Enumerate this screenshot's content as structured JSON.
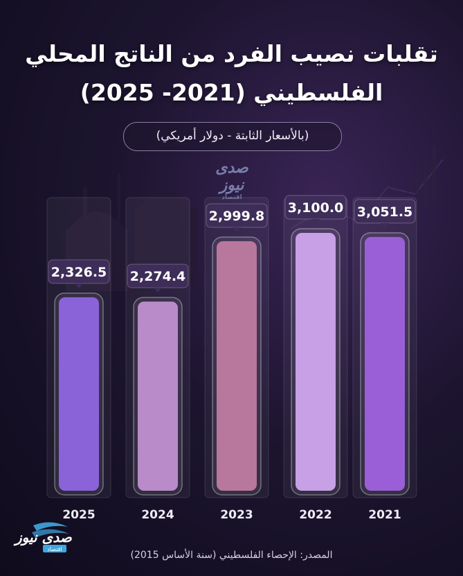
{
  "title_line1": "تقلبات نصيب الفرد من الناتج المحلي",
  "title_line2": "الفلسطيني (2021- 2025)",
  "subtitle": "(بالأسعار الثابتة - دولار أمريكي)",
  "source": "المصدر: الإحصاء الفلسطيني (سنة الأساس 2015)",
  "logo": {
    "name": "صدى نيوز",
    "tag": "اقتصاد"
  },
  "colors": {
    "bar_2025": "#8a63d8",
    "bar_2024": "#b98bc9",
    "bar_2023": "#b8779c",
    "bar_2022": "#c7a0e6",
    "bar_2021": "#9a5fd6",
    "label_bg": "#3e2d58"
  },
  "chart_data": {
    "type": "bar",
    "categories": [
      "2025",
      "2024",
      "2023",
      "2022",
      "2021"
    ],
    "values": [
      2326.5,
      2274.4,
      2999.8,
      3100.0,
      3051.5
    ],
    "value_labels": [
      "2,326.5",
      "2,274.4",
      "2,999.8",
      "3,100.0",
      "3,051.5"
    ],
    "title": "تقلبات نصيب الفرد من الناتج المحلي الفلسطيني (2021- 2025)",
    "subtitle": "(بالأسعار الثابتة - دولار أمريكي)",
    "xlabel": "",
    "ylabel": "",
    "ylim": [
      0,
      3250
    ],
    "grid": false,
    "legend": "none"
  }
}
